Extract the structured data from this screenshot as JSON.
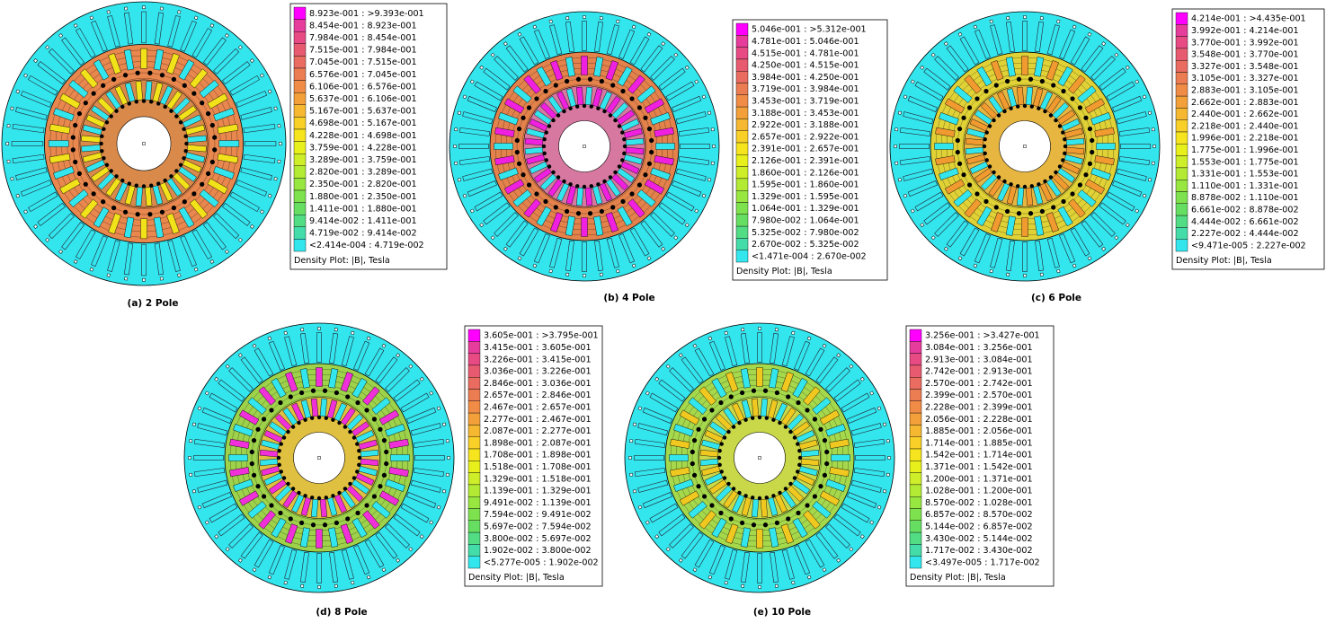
{
  "panels": [
    {
      "caption": "(a) 2 Pole",
      "legend": {
        "title": "Density Plot: |B|, Tesla",
        "rows": [
          "8.923e-001 : >9.393e-001",
          "8.454e-001 : 8.923e-001",
          "7.984e-001 : 8.454e-001",
          "7.515e-001 : 7.984e-001",
          "7.045e-001 : 7.515e-001",
          "6.576e-001 : 7.045e-001",
          "6.106e-001 : 6.576e-001",
          "5.637e-001 : 6.106e-001",
          "5.167e-001 : 5.637e-001",
          "4.698e-001 : 5.167e-001",
          "4.228e-001 : 4.698e-001",
          "3.759e-001 : 4.228e-001",
          "3.289e-001 : 3.759e-001",
          "2.820e-001 : 3.289e-001",
          "2.350e-001 : 2.820e-001",
          "1.880e-001 : 2.350e-001",
          "1.411e-001 : 1.880e-001",
          "9.414e-002 : 1.411e-001",
          "4.719e-002 : 9.414e-002",
          "<2.414e-004 : 4.719e-002"
        ]
      }
    },
    {
      "caption": "(b) 4 Pole",
      "legend": {
        "title": "Density Plot: |B|, Tesla",
        "rows": [
          "5.046e-001 : >5.312e-001",
          "4.781e-001 : 5.046e-001",
          "4.515e-001 : 4.781e-001",
          "4.250e-001 : 4.515e-001",
          "3.984e-001 : 4.250e-001",
          "3.719e-001 : 3.984e-001",
          "3.453e-001 : 3.719e-001",
          "3.188e-001 : 3.453e-001",
          "2.922e-001 : 3.188e-001",
          "2.657e-001 : 2.922e-001",
          "2.391e-001 : 2.657e-001",
          "2.126e-001 : 2.391e-001",
          "1.860e-001 : 2.126e-001",
          "1.595e-001 : 1.860e-001",
          "1.329e-001 : 1.595e-001",
          "1.064e-001 : 1.329e-001",
          "7.980e-002 : 1.064e-001",
          "5.325e-002 : 7.980e-002",
          "2.670e-002 : 5.325e-002",
          "<1.471e-004 : 2.670e-002"
        ]
      }
    },
    {
      "caption": "(c) 6 Pole",
      "legend": {
        "title": "Density Plot: |B|, Tesla",
        "rows": [
          "4.214e-001 : >4.435e-001",
          "3.992e-001 : 4.214e-001",
          "3.770e-001 : 3.992e-001",
          "3.548e-001 : 3.770e-001",
          "3.327e-001 : 3.548e-001",
          "3.105e-001 : 3.327e-001",
          "2.883e-001 : 3.105e-001",
          "2.662e-001 : 2.883e-001",
          "2.440e-001 : 2.662e-001",
          "2.218e-001 : 2.440e-001",
          "1.996e-001 : 2.218e-001",
          "1.775e-001 : 1.996e-001",
          "1.553e-001 : 1.775e-001",
          "1.331e-001 : 1.553e-001",
          "1.110e-001 : 1.331e-001",
          "8.878e-002 : 1.110e-001",
          "6.661e-002 : 8.878e-002",
          "4.444e-002 : 6.661e-002",
          "2.227e-002 : 4.444e-002",
          "<9.471e-005 : 2.227e-002"
        ]
      }
    },
    {
      "caption": "(d) 8 Pole",
      "legend": {
        "title": "Density Plot: |B|, Tesla",
        "rows": [
          "3.605e-001 : >3.795e-001",
          "3.415e-001 : 3.605e-001",
          "3.226e-001 : 3.415e-001",
          "3.036e-001 : 3.226e-001",
          "2.846e-001 : 3.036e-001",
          "2.657e-001 : 2.846e-001",
          "2.467e-001 : 2.657e-001",
          "2.277e-001 : 2.467e-001",
          "2.087e-001 : 2.277e-001",
          "1.898e-001 : 2.087e-001",
          "1.708e-001 : 1.898e-001",
          "1.518e-001 : 1.708e-001",
          "1.329e-001 : 1.518e-001",
          "1.139e-001 : 1.329e-001",
          "9.491e-002 : 1.139e-001",
          "7.594e-002 : 9.491e-002",
          "5.697e-002 : 7.594e-002",
          "3.800e-002 : 5.697e-002",
          "1.902e-002 : 3.800e-002",
          "<5.277e-005 : 1.902e-002"
        ]
      }
    },
    {
      "caption": "(e) 10 Pole",
      "legend": {
        "title": "Density Plot: |B|, Tesla",
        "rows": [
          "3.256e-001 : >3.427e-001",
          "3.084e-001 : 3.256e-001",
          "2.913e-001 : 3.084e-001",
          "2.742e-001 : 2.913e-001",
          "2.570e-001 : 2.742e-001",
          "2.399e-001 : 2.570e-001",
          "2.228e-001 : 2.399e-001",
          "2.056e-001 : 2.228e-001",
          "1.885e-001 : 2.056e-001",
          "1.714e-001 : 1.885e-001",
          "1.542e-001 : 1.714e-001",
          "1.371e-001 : 1.542e-001",
          "1.200e-001 : 1.371e-001",
          "1.028e-001 : 1.200e-001",
          "8.570e-002 : 1.028e-001",
          "6.857e-002 : 8.570e-002",
          "5.144e-002 : 6.857e-002",
          "3.430e-002 : 5.144e-002",
          "1.717e-002 : 3.430e-002",
          "<3.497e-005 : 1.717e-002"
        ]
      }
    }
  ]
}
